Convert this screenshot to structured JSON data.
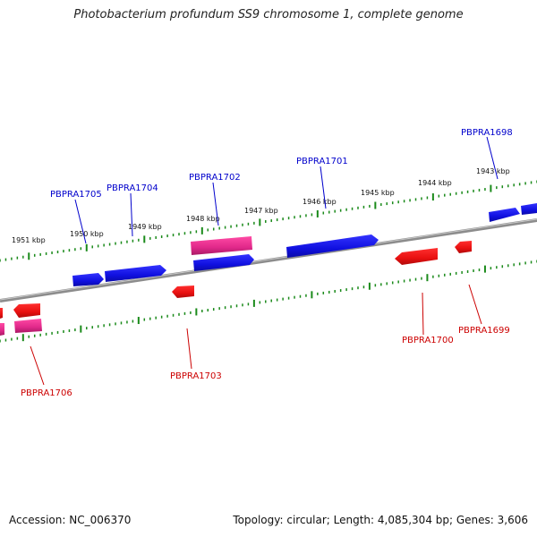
{
  "title": "Photobacterium profundum SS9 chromosome 1, complete genome",
  "footer": {
    "accession": "Accession: NC_006370",
    "summary": "Topology: circular; Length: 4,085,304 bp; Genes: 3,606"
  },
  "colors": {
    "forward_gene": "#1010e8",
    "reverse_gene": "#ee1010",
    "rna_gene": "#e0288a",
    "forward_label": "#0000cc",
    "reverse_label": "#cc0000",
    "backbone": "#8c8c8c",
    "ticks": "#1a8a1a"
  },
  "scale_ticks": [
    "1943 kbp",
    "1944 kbp",
    "1945 kbp",
    "1946 kbp",
    "1947 kbp",
    "1948 kbp",
    "1949 kbp",
    "1950 kbp",
    "1951 kbp"
  ],
  "gene_labels": {
    "PBPRA1698": "PBPRA1698",
    "PBPRA1699": "PBPRA1699",
    "PBPRA1700": "PBPRA1700",
    "PBPRA1701": "PBPRA1701",
    "PBPRA1702": "PBPRA1702",
    "PBPRA1703": "PBPRA1703",
    "PBPRA1704": "PBPRA1704",
    "PBPRA1705": "PBPRA1705",
    "PBPRA1706": "PBPRA1706"
  }
}
